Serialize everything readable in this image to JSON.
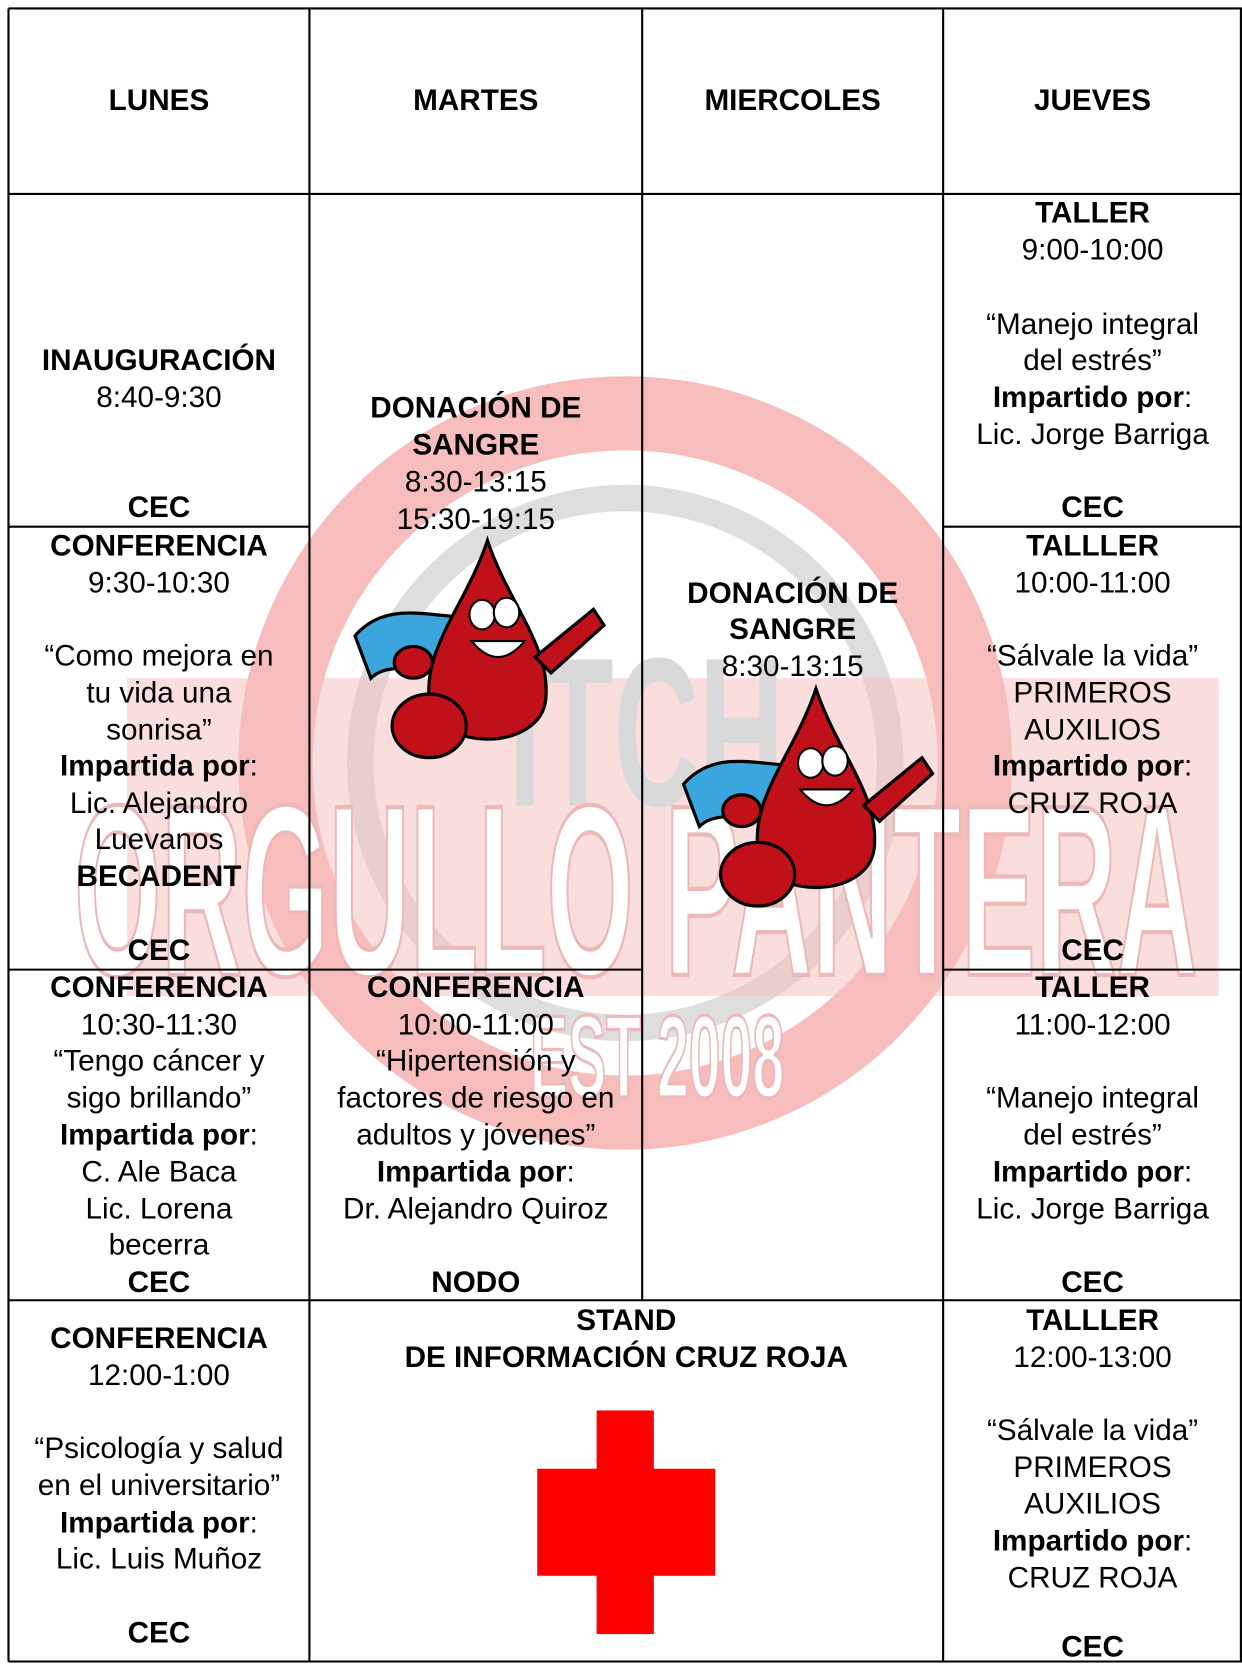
{
  "header": {
    "days": [
      "LUNES",
      "MARTES",
      "MIERCOLES",
      "JUEVES"
    ]
  },
  "watermark": {
    "top": "ITCH",
    "main": "ORGULLO PANTERA",
    "est": "EST 2008"
  },
  "schedule": {
    "lunes": [
      [
        "INAUGURACIÓN",
        "8:40-9:30",
        "CEC"
      ],
      [
        "CONFERENCIA",
        "9:30-10:30",
        "“Como mejora en",
        "tu vida una",
        "sonrisa”",
        {
          "label": "Impartida por",
          "colon": ":"
        },
        "Lic. Alejandro",
        "Luevanos",
        "BECADENT",
        "CEC"
      ],
      [
        "CONFERENCIA",
        "10:30-11:30",
        "“Tengo cáncer y",
        "sigo brillando”",
        {
          "label": "Impartida por",
          "colon": ":"
        },
        "C. Ale Baca",
        "Lic. Lorena",
        "becerra",
        "CEC"
      ],
      [
        "CONFERENCIA",
        "12:00-1:00",
        "“Psicología y salud",
        "en el universitario”",
        {
          "label": "Impartida por",
          "colon": ":"
        },
        "Lic. Luis Muñoz",
        "CEC"
      ]
    ],
    "martes": [
      [
        "DONACIÓN DE",
        "SANGRE",
        "8:30-13:15",
        "15:30-19:15"
      ],
      [
        "CONFERENCIA",
        "10:00-11:00",
        "“Hipertensión y",
        "factores de riesgo en",
        "adultos y jóvenes”",
        {
          "label": "Impartida por",
          "colon": ":"
        },
        "Dr. Alejandro Quiroz",
        "NODO"
      ]
    ],
    "miercoles": [
      [
        "DONACIÓN DE",
        "SANGRE",
        "8:30-13:15"
      ]
    ],
    "stand": [
      "STAND",
      "DE INFORMACIÓN CRUZ ROJA"
    ],
    "jueves": [
      [
        "TALLER",
        "9:00-10:00",
        "“Manejo integral",
        "del estrés”",
        {
          "label": "Impartido por",
          "colon": ":"
        },
        "Lic. Jorge Barriga",
        "CEC"
      ],
      [
        "TALLLER",
        "10:00-11:00",
        "“Sálvale la vida”",
        "PRIMEROS",
        "AUXILIOS",
        {
          "label": "Impartido por",
          "colon": ":"
        },
        "CRUZ ROJA",
        "CEC"
      ],
      [
        "TALLER",
        "11:00-12:00",
        "“Manejo integral",
        "del estrés”",
        {
          "label": "Impartido por",
          "colon": ":"
        },
        "Lic. Jorge Barriga",
        "CEC"
      ],
      [
        "TALLLER",
        "12:00-13:00",
        "“Sálvale la vida”",
        "PRIMEROS",
        "AUXILIOS",
        {
          "label": "Impartido por",
          "colon": ":"
        },
        "CRUZ ROJA",
        "CEC"
      ]
    ]
  }
}
